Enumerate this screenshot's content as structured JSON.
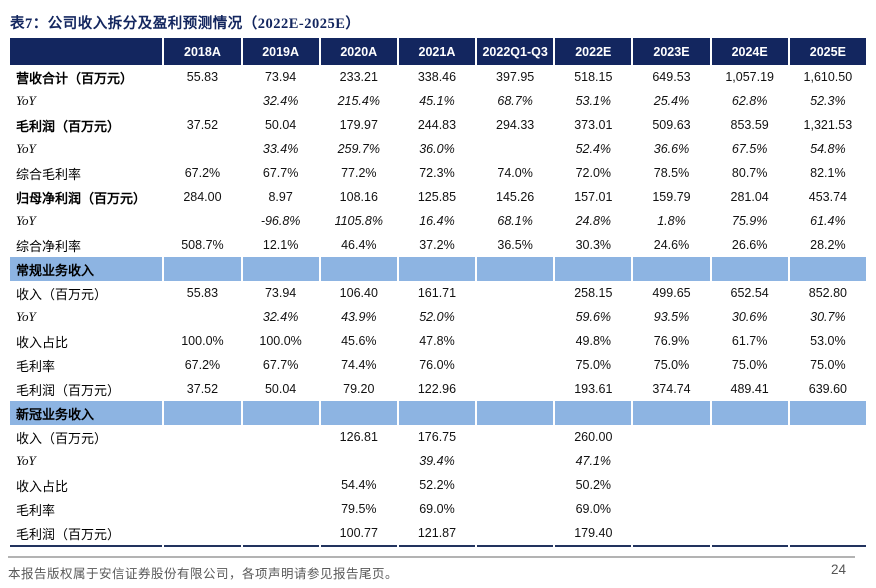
{
  "title": "表7：公司收入拆分及盈利预测情况（2022E-2025E）",
  "colors": {
    "header_bg": "#13265F",
    "section_bg": "#8DB4E2",
    "title_text": "#13265F",
    "footer_text": "#595959",
    "table_bottom_border": "#22335E"
  },
  "table": {
    "columns": [
      "",
      "2018A",
      "2019A",
      "2020A",
      "2021A",
      "2022Q1-Q3",
      "2022E",
      "2023E",
      "2024E",
      "2025E"
    ],
    "rows": [
      {
        "label": "营收合计（百万元）",
        "style": "bold",
        "values": [
          "55.83",
          "73.94",
          "233.21",
          "338.46",
          "397.95",
          "518.15",
          "649.53",
          "1,057.19",
          "1,610.50"
        ]
      },
      {
        "label": "YoY",
        "style": "yoy1",
        "values": [
          "",
          "32.4%",
          "215.4%",
          "45.1%",
          "68.7%",
          "53.1%",
          "25.4%",
          "62.8%",
          "52.3%"
        ]
      },
      {
        "label": "毛利润（百万元）",
        "style": "bold",
        "values": [
          "37.52",
          "50.04",
          "179.97",
          "244.83",
          "294.33",
          "373.01",
          "509.63",
          "853.59",
          "1,321.53"
        ]
      },
      {
        "label": "YoY",
        "style": "yoy1",
        "values": [
          "",
          "33.4%",
          "259.7%",
          "36.0%",
          "",
          "52.4%",
          "36.6%",
          "67.5%",
          "54.8%"
        ]
      },
      {
        "label": "综合毛利率",
        "style": "indent1",
        "values": [
          "67.2%",
          "67.7%",
          "77.2%",
          "72.3%",
          "74.0%",
          "72.0%",
          "78.5%",
          "80.7%",
          "82.1%"
        ]
      },
      {
        "label": "归母净利润（百万元）",
        "style": "bold",
        "values": [
          "284.00",
          "8.97",
          "108.16",
          "125.85",
          "145.26",
          "157.01",
          "159.79",
          "281.04",
          "453.74"
        ]
      },
      {
        "label": "YoY",
        "style": "yoy1",
        "values": [
          "",
          "-96.8%",
          "1105.8%",
          "16.4%",
          "68.1%",
          "24.8%",
          "1.8%",
          "75.9%",
          "61.4%"
        ]
      },
      {
        "label": "综合净利率",
        "style": "indent1",
        "values": [
          "508.7%",
          "12.1%",
          "46.4%",
          "37.2%",
          "36.5%",
          "30.3%",
          "24.6%",
          "26.6%",
          "28.2%"
        ]
      },
      {
        "label": "常规业务收入",
        "style": "section",
        "values": [
          "",
          "",
          "",
          "",
          "",
          "",
          "",
          "",
          ""
        ]
      },
      {
        "label": "收入（百万元）",
        "style": "indent1",
        "values": [
          "55.83",
          "73.94",
          "106.40",
          "161.71",
          "",
          "258.15",
          "499.65",
          "652.54",
          "852.80"
        ]
      },
      {
        "label": "YoY",
        "style": "yoy2",
        "values": [
          "",
          "32.4%",
          "43.9%",
          "52.0%",
          "",
          "59.6%",
          "93.5%",
          "30.6%",
          "30.7%"
        ]
      },
      {
        "label": "收入占比",
        "style": "indent1",
        "values": [
          "100.0%",
          "100.0%",
          "45.6%",
          "47.8%",
          "",
          "49.8%",
          "76.9%",
          "61.7%",
          "53.0%"
        ]
      },
      {
        "label": "毛利率",
        "style": "indent1",
        "values": [
          "67.2%",
          "67.7%",
          "74.4%",
          "76.0%",
          "",
          "75.0%",
          "75.0%",
          "75.0%",
          "75.0%"
        ]
      },
      {
        "label": "毛利润（百万元）",
        "style": "indent1",
        "values": [
          "37.52",
          "50.04",
          "79.20",
          "122.96",
          "",
          "193.61",
          "374.74",
          "489.41",
          "639.60"
        ]
      },
      {
        "label": "新冠业务收入",
        "style": "section",
        "values": [
          "",
          "",
          "",
          "",
          "",
          "",
          "",
          "",
          ""
        ]
      },
      {
        "label": "收入（百万元）",
        "style": "indent1",
        "values": [
          "",
          "",
          "126.81",
          "176.75",
          "",
          "260.00",
          "",
          "",
          ""
        ]
      },
      {
        "label": "YoY",
        "style": "yoy2",
        "values": [
          "",
          "",
          "",
          "39.4%",
          "",
          "47.1%",
          "",
          "",
          ""
        ]
      },
      {
        "label": "收入占比",
        "style": "indent1",
        "values": [
          "",
          "",
          "54.4%",
          "52.2%",
          "",
          "50.2%",
          "",
          "",
          ""
        ]
      },
      {
        "label": "毛利率",
        "style": "indent1",
        "values": [
          "",
          "",
          "79.5%",
          "69.0%",
          "",
          "69.0%",
          "",
          "",
          ""
        ]
      },
      {
        "label": "毛利润（百万元）",
        "style": "indent1",
        "values": [
          "",
          "",
          "100.77",
          "121.87",
          "",
          "179.40",
          "",
          "",
          ""
        ]
      }
    ]
  },
  "footer": {
    "disclaimer": "本报告版权属于安信证券股份有限公司，各项声明请参见报告尾页。",
    "page_number": "24"
  }
}
